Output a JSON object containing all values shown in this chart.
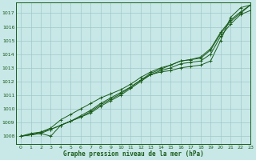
{
  "title": "Graphe pression niveau de la mer (hPa)",
  "bg_color": "#c8e8e8",
  "grid_color": "#a0c8c8",
  "line_color": "#1a5c1a",
  "xlim": [
    -0.5,
    23
  ],
  "ylim": [
    1007.4,
    1017.8
  ],
  "yticks": [
    1008,
    1009,
    1010,
    1011,
    1012,
    1013,
    1014,
    1015,
    1016,
    1017
  ],
  "xticks": [
    0,
    1,
    2,
    3,
    4,
    5,
    6,
    7,
    8,
    9,
    10,
    11,
    12,
    13,
    14,
    15,
    16,
    17,
    18,
    19,
    20,
    21,
    22,
    23
  ],
  "lines": [
    [
      1008.0,
      1008.2,
      1008.3,
      1008.5,
      1008.8,
      1009.1,
      1009.5,
      1009.9,
      1010.4,
      1010.8,
      1011.2,
      1011.6,
      1012.1,
      1012.5,
      1012.7,
      1012.8,
      1013.0,
      1013.1,
      1013.2,
      1013.5,
      1015.0,
      1016.7,
      1017.4,
      1017.6
    ],
    [
      1008.0,
      1008.1,
      1008.2,
      1008.0,
      1008.8,
      1009.1,
      1009.4,
      1009.7,
      1010.2,
      1010.6,
      1011.0,
      1011.5,
      1012.0,
      1012.5,
      1012.8,
      1013.0,
      1013.3,
      1013.4,
      1013.5,
      1014.0,
      1015.3,
      1016.2,
      1016.9,
      1017.2
    ],
    [
      1008.0,
      1008.1,
      1008.3,
      1008.6,
      1009.2,
      1009.6,
      1010.0,
      1010.4,
      1010.8,
      1011.1,
      1011.4,
      1011.8,
      1012.3,
      1012.7,
      1013.0,
      1013.2,
      1013.5,
      1013.6,
      1013.7,
      1014.3,
      1015.5,
      1016.4,
      1017.0,
      1017.6
    ],
    [
      1008.0,
      1008.1,
      1008.2,
      1008.5,
      1008.8,
      1009.1,
      1009.4,
      1009.8,
      1010.3,
      1010.7,
      1011.1,
      1011.6,
      1012.1,
      1012.6,
      1012.9,
      1013.2,
      1013.5,
      1013.6,
      1013.8,
      1014.4,
      1015.6,
      1016.5,
      1017.1,
      1017.6
    ]
  ]
}
